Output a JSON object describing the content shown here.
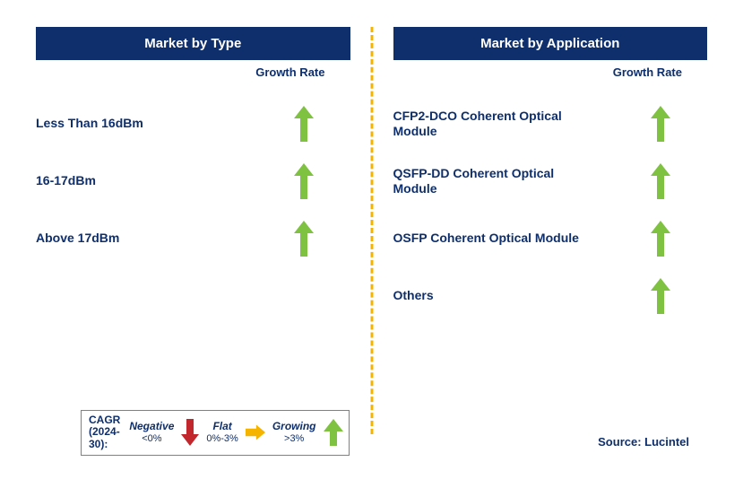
{
  "colors": {
    "navy": "#0e2f6c",
    "text_navy": "#0e2f6c",
    "divider": "#f5b400",
    "arrow_green": "#7fc241",
    "arrow_yellow": "#f5b400",
    "arrow_red": "#c1272d",
    "header_fontsize": 15,
    "label_fontsize": 14,
    "colheader_fontsize": 13
  },
  "left": {
    "title": "Market by Type",
    "column_header": "Growth Rate",
    "rows": [
      {
        "label": "Less Than 16dBm",
        "growth": "growing"
      },
      {
        "label": "16-17dBm",
        "growth": "growing"
      },
      {
        "label": "Above 17dBm",
        "growth": "growing"
      }
    ]
  },
  "right": {
    "title": "Market by Application",
    "column_header": "Growth Rate",
    "rows": [
      {
        "label": "CFP2-DCO Coherent Optical Module",
        "growth": "growing"
      },
      {
        "label": "QSFP-DD Coherent Optical Module",
        "growth": "growing"
      },
      {
        "label": "OSFP Coherent Optical Module",
        "growth": "growing"
      },
      {
        "label": "Others",
        "growth": "growing"
      }
    ]
  },
  "legend": {
    "lead1": "CAGR",
    "lead2": "(2024-30):",
    "items": [
      {
        "label": "Negative",
        "range": "<0%",
        "icon": "down-red"
      },
      {
        "label": "Flat",
        "range": "0%-3%",
        "icon": "right-yellow"
      },
      {
        "label": "Growing",
        "range": ">3%",
        "icon": "up-green"
      }
    ]
  },
  "source": "Source: Lucintel"
}
